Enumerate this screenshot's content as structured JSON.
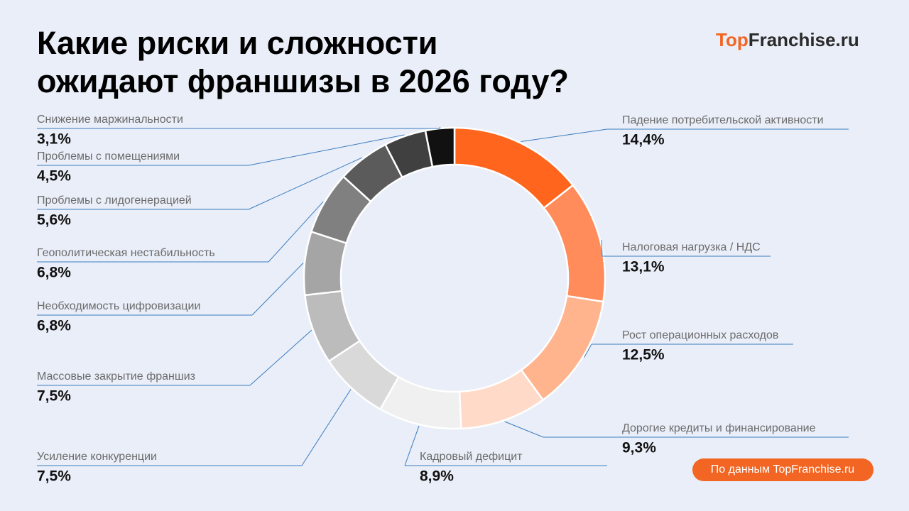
{
  "chart_data": {
    "type": "pie",
    "title": [
      "Какие риски и сложности",
      "ожидают франшизы в 2026 году?"
    ],
    "logo": {
      "accent": "Top",
      "rest": "Franchise.ru"
    },
    "source": "По данным TopFranchise.ru",
    "categories": [
      "Падение потребительской активности",
      "Налоговая нагрузка / НДС",
      "Рост операционных расходов",
      "Дорогие кредиты и финансирование",
      "Кадровый дефицит",
      "Усиление конкуренции",
      "Массовые закрытие франшиз",
      "Необходимость цифровизации",
      "Геополитическая нестабильность",
      "Проблемы с лидогенерацией",
      "Проблемы с помещениями",
      "Снижение маржинальности"
    ],
    "values": [
      14.4,
      13.1,
      12.5,
      9.3,
      8.9,
      7.5,
      7.5,
      6.8,
      6.8,
      5.6,
      4.5,
      3.1
    ],
    "value_labels": [
      "14,4%",
      "13,1%",
      "12,5%",
      "9,3%",
      "8,9%",
      "7,5%",
      "7,5%",
      "6,8%",
      "6,8%",
      "5,6%",
      "4,5%",
      "3,1%"
    ],
    "colors": [
      "#ff651c",
      "#ff8c5a",
      "#ffb48e",
      "#ffdac8",
      "#f0f0f0",
      "#d9d9d9",
      "#bcbcbc",
      "#a5a5a5",
      "#808080",
      "#5b5b5b",
      "#404040",
      "#111111"
    ],
    "donut": true
  }
}
